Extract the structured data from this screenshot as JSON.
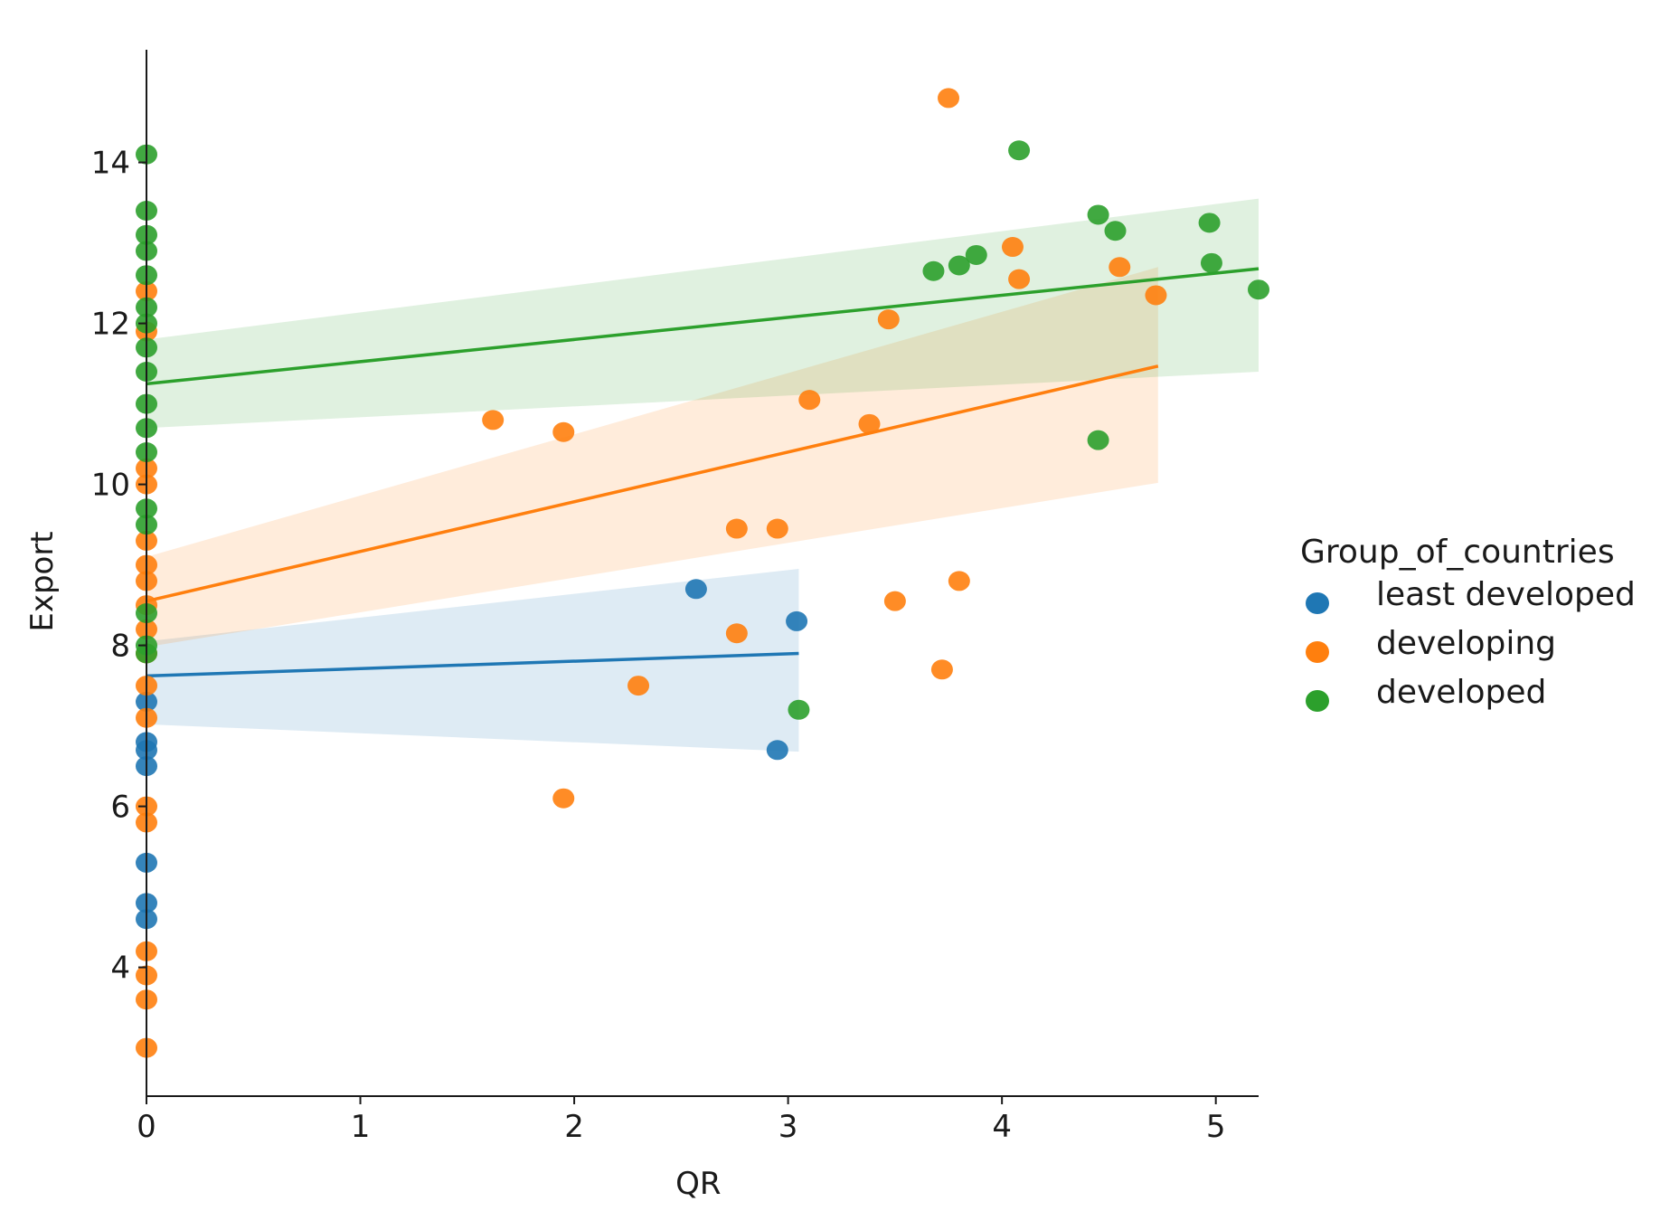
{
  "chart_data": {
    "type": "scatter",
    "title": "",
    "xlabel": "QR",
    "ylabel": "Export",
    "xlim": [
      0,
      5.2
    ],
    "ylim": [
      2.4,
      15.4
    ],
    "xticks": [
      0,
      1,
      2,
      3,
      4,
      5
    ],
    "yticks": [
      4,
      6,
      8,
      10,
      12,
      14
    ],
    "grid": false,
    "legend": {
      "title": "Group_of_countries",
      "placement": "right"
    },
    "series": [
      {
        "name": "least developed",
        "color": "#1f77b4",
        "points": [
          [
            0,
            7.3
          ],
          [
            0,
            6.8
          ],
          [
            0,
            6.7
          ],
          [
            0,
            6.5
          ],
          [
            0,
            5.3
          ],
          [
            0,
            4.8
          ],
          [
            0,
            4.6
          ],
          [
            2.57,
            8.7
          ],
          [
            3.04,
            8.3
          ],
          [
            2.95,
            6.7
          ]
        ],
        "fit_line": [
          [
            0,
            7.62
          ],
          [
            3.05,
            7.9
          ]
        ],
        "ci_band": {
          "x": [
            0,
            3.05
          ],
          "upper": [
            8.05,
            8.95
          ],
          "lower": [
            7.02,
            6.68
          ]
        }
      },
      {
        "name": "developing",
        "color": "#ff7f0e",
        "points": [
          [
            0,
            12.4
          ],
          [
            0,
            11.9
          ],
          [
            0,
            10.2
          ],
          [
            0,
            10.0
          ],
          [
            0,
            9.3
          ],
          [
            0,
            9.0
          ],
          [
            0,
            8.8
          ],
          [
            0,
            8.5
          ],
          [
            0,
            8.2
          ],
          [
            0,
            7.9
          ],
          [
            0,
            7.5
          ],
          [
            0,
            7.1
          ],
          [
            0,
            6.0
          ],
          [
            0,
            5.8
          ],
          [
            0,
            4.2
          ],
          [
            0,
            3.9
          ],
          [
            0,
            3.6
          ],
          [
            0,
            3.0
          ],
          [
            1.62,
            10.8
          ],
          [
            1.95,
            10.65
          ],
          [
            1.95,
            6.1
          ],
          [
            2.3,
            7.5
          ],
          [
            2.76,
            9.45
          ],
          [
            2.76,
            8.15
          ],
          [
            2.95,
            9.45
          ],
          [
            3.1,
            11.05
          ],
          [
            3.38,
            10.75
          ],
          [
            3.47,
            12.05
          ],
          [
            3.5,
            8.55
          ],
          [
            3.72,
            7.7
          ],
          [
            3.75,
            14.8
          ],
          [
            3.8,
            8.8
          ],
          [
            4.05,
            12.95
          ],
          [
            4.08,
            12.55
          ],
          [
            4.55,
            12.7
          ],
          [
            4.72,
            12.35
          ]
        ],
        "fit_line": [
          [
            0,
            8.55
          ],
          [
            4.73,
            11.47
          ]
        ],
        "ci_band": {
          "x": [
            0,
            4.73
          ],
          "upper": [
            9.1,
            12.7
          ],
          "lower": [
            7.98,
            10.02
          ]
        }
      },
      {
        "name": "developed",
        "color": "#2ca02c",
        "points": [
          [
            0,
            14.1
          ],
          [
            0,
            13.4
          ],
          [
            0,
            13.1
          ],
          [
            0,
            12.9
          ],
          [
            0,
            12.6
          ],
          [
            0,
            12.2
          ],
          [
            0,
            12.0
          ],
          [
            0,
            11.7
          ],
          [
            0,
            11.4
          ],
          [
            0,
            11.0
          ],
          [
            0,
            10.7
          ],
          [
            0,
            10.4
          ],
          [
            0,
            9.7
          ],
          [
            0,
            9.5
          ],
          [
            0,
            8.4
          ],
          [
            0,
            8.0
          ],
          [
            0,
            7.9
          ],
          [
            3.05,
            7.2
          ],
          [
            3.68,
            12.65
          ],
          [
            3.8,
            12.72
          ],
          [
            3.88,
            12.85
          ],
          [
            4.08,
            14.15
          ],
          [
            4.45,
            13.35
          ],
          [
            4.45,
            10.55
          ],
          [
            4.53,
            13.15
          ],
          [
            4.97,
            13.25
          ],
          [
            4.98,
            12.75
          ],
          [
            5.2,
            12.42
          ]
        ],
        "fit_line": [
          [
            0,
            11.25
          ],
          [
            5.2,
            12.68
          ]
        ],
        "ci_band": {
          "x": [
            0,
            5.2
          ],
          "upper": [
            11.8,
            13.55
          ],
          "lower": [
            10.7,
            11.4
          ]
        }
      }
    ]
  }
}
